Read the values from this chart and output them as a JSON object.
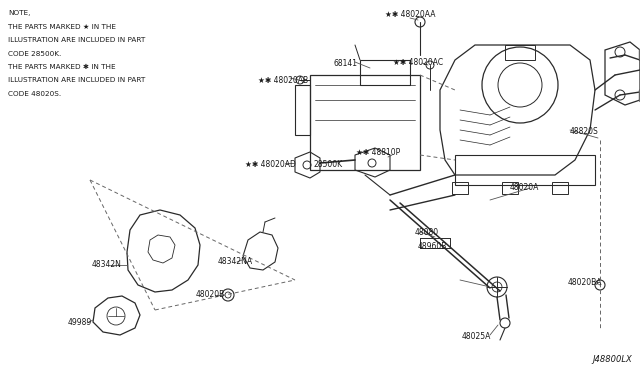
{
  "bg_color": "#ffffff",
  "line_color": "#2a2a2a",
  "text_color": "#1a1a1a",
  "diagram_id": "J48800LX",
  "note_lines": [
    "NOTE,",
    "THE PARTS MARKED ★ IN THE",
    "ILLUSTRATION ARE INCLUDED IN PART",
    "CODE 28500K.",
    "THE PARTS MARKED ✱ IN THE",
    "ILLUSTRATION ARE INCLUDED IN PART",
    "CODE 48020S."
  ],
  "figsize": [
    6.4,
    3.72
  ],
  "dpi": 100
}
